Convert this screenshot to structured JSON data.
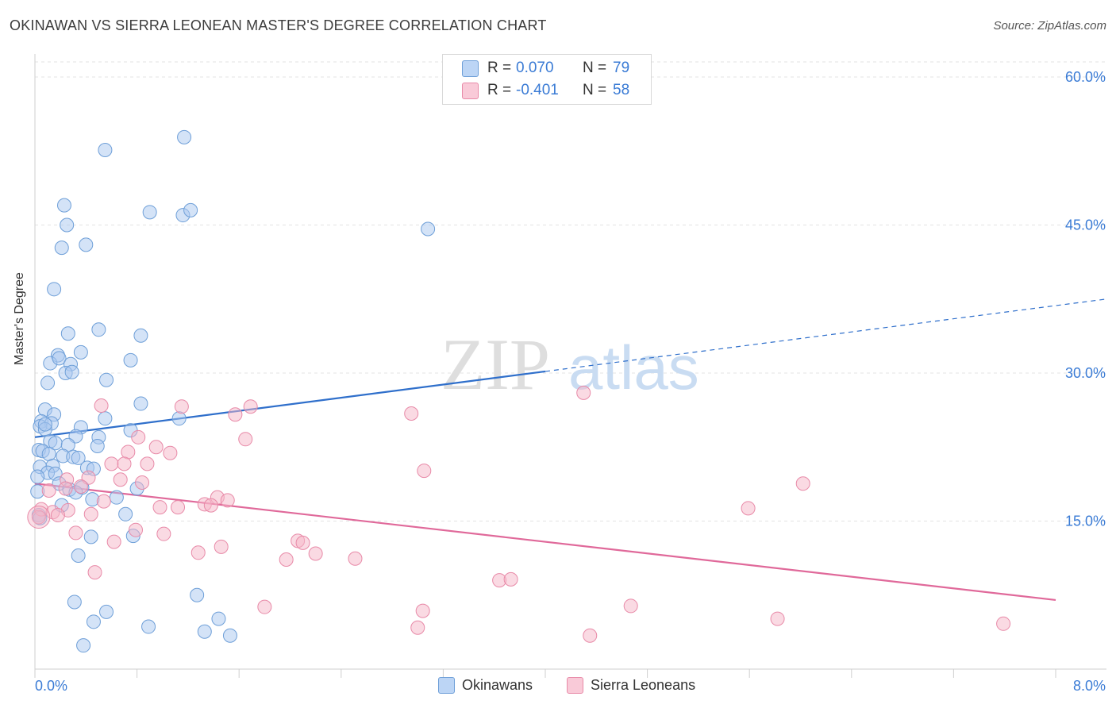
{
  "header": {
    "title": "OKINAWAN VS SIERRA LEONEAN MASTER'S DEGREE CORRELATION CHART",
    "source": "Source: ZipAtlas.com"
  },
  "legend": {
    "r_label": "R =",
    "n_label": "N =",
    "items": [
      {
        "name": "Okinawans",
        "r": "0.070",
        "n": "79",
        "color": "#a9c8f0"
      },
      {
        "name": "Sierra Leoneans",
        "r": "-0.401",
        "n": "58",
        "color": "#f5b5c8"
      }
    ]
  },
  "watermark": {
    "zip": "ZIP",
    "atlas": "atlas"
  },
  "chart_data": {
    "type": "scatter",
    "title": "OKINAWAN VS SIERRA LEONEAN MASTER'S DEGREE CORRELATION CHART",
    "xlabel": "",
    "ylabel": "Master's Degree",
    "xlim": [
      0,
      8.4
    ],
    "ylim": [
      0,
      60
    ],
    "x_tick_labels": [
      "0.0%",
      "8.0%"
    ],
    "y_ticks": [
      15,
      30,
      45,
      60
    ],
    "y_tick_labels": [
      "15.0%",
      "30.0%",
      "45.0%",
      "60.0%"
    ],
    "grid": true,
    "series": [
      {
        "name": "Okinawans",
        "color": "#a9c8f0",
        "stroke": "#6e9fd8",
        "trend": {
          "x_start": 0,
          "y_start": 23.5,
          "x_solid_end": 4.0,
          "x_end": 8.4,
          "y_end": 37.5,
          "color": "#2f6fcb"
        },
        "points": [
          [
            0.55,
            52.6
          ],
          [
            1.17,
            53.9
          ],
          [
            0.23,
            47.0
          ],
          [
            0.9,
            46.3
          ],
          [
            1.16,
            46.0
          ],
          [
            1.22,
            46.5
          ],
          [
            0.25,
            45.0
          ],
          [
            3.08,
            44.6
          ],
          [
            0.21,
            42.7
          ],
          [
            0.4,
            43.0
          ],
          [
            0.15,
            38.5
          ],
          [
            0.26,
            34.0
          ],
          [
            0.5,
            34.4
          ],
          [
            0.83,
            33.8
          ],
          [
            0.18,
            31.8
          ],
          [
            0.36,
            32.1
          ],
          [
            0.12,
            31.0
          ],
          [
            0.19,
            31.5
          ],
          [
            0.28,
            30.9
          ],
          [
            0.75,
            31.3
          ],
          [
            0.24,
            30.0
          ],
          [
            0.29,
            30.1
          ],
          [
            0.56,
            29.3
          ],
          [
            0.1,
            29.0
          ],
          [
            0.83,
            26.9
          ],
          [
            0.08,
            26.3
          ],
          [
            0.15,
            25.8
          ],
          [
            0.55,
            25.4
          ],
          [
            1.13,
            25.4
          ],
          [
            0.05,
            25.1
          ],
          [
            0.13,
            24.9
          ],
          [
            0.04,
            24.6
          ],
          [
            0.08,
            24.3
          ],
          [
            0.36,
            24.5
          ],
          [
            0.75,
            24.2
          ],
          [
            0.32,
            23.6
          ],
          [
            0.5,
            23.5
          ],
          [
            0.12,
            23.1
          ],
          [
            0.16,
            22.9
          ],
          [
            0.26,
            22.7
          ],
          [
            0.49,
            22.6
          ],
          [
            0.03,
            22.2
          ],
          [
            0.06,
            22.1
          ],
          [
            0.11,
            21.8
          ],
          [
            0.22,
            21.6
          ],
          [
            0.3,
            21.5
          ],
          [
            0.34,
            21.4
          ],
          [
            0.04,
            20.5
          ],
          [
            0.14,
            20.6
          ],
          [
            0.41,
            20.4
          ],
          [
            0.46,
            20.3
          ],
          [
            0.1,
            19.9
          ],
          [
            0.16,
            19.8
          ],
          [
            0.02,
            19.5
          ],
          [
            0.19,
            18.8
          ],
          [
            0.37,
            18.4
          ],
          [
            0.27,
            18.2
          ],
          [
            0.32,
            17.9
          ],
          [
            0.02,
            18.0
          ],
          [
            0.45,
            17.2
          ],
          [
            0.64,
            17.4
          ],
          [
            0.8,
            18.3
          ],
          [
            0.21,
            16.6
          ],
          [
            0.71,
            15.7
          ],
          [
            0.03,
            15.6
          ],
          [
            0.44,
            13.4
          ],
          [
            0.77,
            13.5
          ],
          [
            0.34,
            11.5
          ],
          [
            1.27,
            7.5
          ],
          [
            0.31,
            6.8
          ],
          [
            0.56,
            5.8
          ],
          [
            1.44,
            5.1
          ],
          [
            0.46,
            4.8
          ],
          [
            0.89,
            4.3
          ],
          [
            1.33,
            3.8
          ],
          [
            1.53,
            3.4
          ],
          [
            0.38,
            2.4
          ],
          [
            0.04,
            15.3
          ],
          [
            0.08,
            24.8
          ]
        ]
      },
      {
        "name": "Sierra Leoneans",
        "color": "#f5b5c8",
        "stroke": "#e88aa8",
        "trend": {
          "x_start": 0,
          "y_start": 18.8,
          "x_end": 8.0,
          "y_end": 7.0,
          "color": "#e0699a"
        },
        "points": [
          [
            4.3,
            28.0
          ],
          [
            0.52,
            26.7
          ],
          [
            1.15,
            26.6
          ],
          [
            1.69,
            26.6
          ],
          [
            1.57,
            25.8
          ],
          [
            2.95,
            25.9
          ],
          [
            0.81,
            23.5
          ],
          [
            1.65,
            23.3
          ],
          [
            0.95,
            22.5
          ],
          [
            0.73,
            22.0
          ],
          [
            1.06,
            21.9
          ],
          [
            0.6,
            20.8
          ],
          [
            0.7,
            20.8
          ],
          [
            0.88,
            20.8
          ],
          [
            3.05,
            20.1
          ],
          [
            0.42,
            19.4
          ],
          [
            0.67,
            19.2
          ],
          [
            0.84,
            18.9
          ],
          [
            0.25,
            19.2
          ],
          [
            6.02,
            18.8
          ],
          [
            0.11,
            18.1
          ],
          [
            0.24,
            18.3
          ],
          [
            0.36,
            18.5
          ],
          [
            1.43,
            17.4
          ],
          [
            1.51,
            17.1
          ],
          [
            0.54,
            17.0
          ],
          [
            1.33,
            16.7
          ],
          [
            1.38,
            16.6
          ],
          [
            0.98,
            16.4
          ],
          [
            1.12,
            16.4
          ],
          [
            5.59,
            16.3
          ],
          [
            0.26,
            16.1
          ],
          [
            0.05,
            16.2
          ],
          [
            0.14,
            15.9
          ],
          [
            0.44,
            15.7
          ],
          [
            0.18,
            15.6
          ],
          [
            0.32,
            13.8
          ],
          [
            0.79,
            14.1
          ],
          [
            1.01,
            13.7
          ],
          [
            0.62,
            12.9
          ],
          [
            2.06,
            13.0
          ],
          [
            2.1,
            12.8
          ],
          [
            1.46,
            12.4
          ],
          [
            1.28,
            11.8
          ],
          [
            2.2,
            11.7
          ],
          [
            1.97,
            11.1
          ],
          [
            2.51,
            11.2
          ],
          [
            0.47,
            9.8
          ],
          [
            3.64,
            9.0
          ],
          [
            3.73,
            9.1
          ],
          [
            1.8,
            6.3
          ],
          [
            3.04,
            5.9
          ],
          [
            4.67,
            6.4
          ],
          [
            5.82,
            5.1
          ],
          [
            7.59,
            4.6
          ],
          [
            3.0,
            4.2
          ],
          [
            4.35,
            3.4
          ],
          [
            0.03,
            15.4
          ]
        ]
      }
    ]
  }
}
